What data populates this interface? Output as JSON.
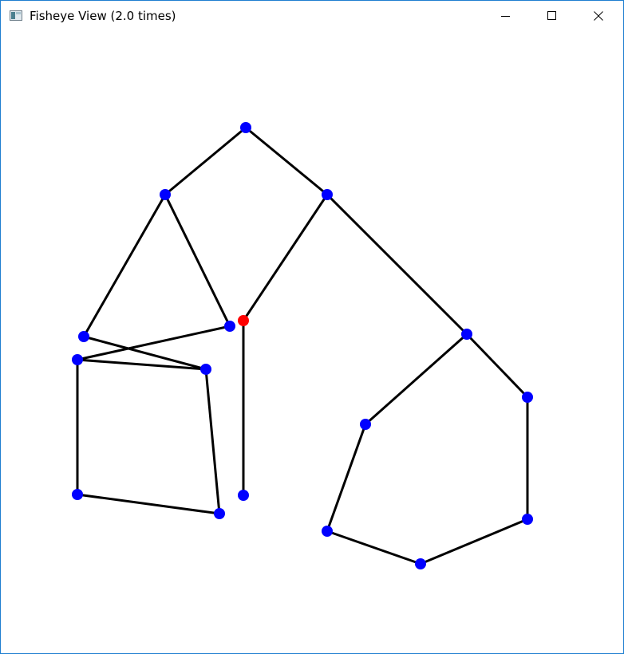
{
  "window": {
    "title": "Fisheye View (2.0 times)",
    "app_icon": "window-icon",
    "controls": [
      {
        "name": "minimize-button",
        "icon": "minimize-icon",
        "glyph": "—"
      },
      {
        "name": "maximize-button",
        "icon": "maximize-icon",
        "glyph": "□"
      },
      {
        "name": "close-button",
        "icon": "close-icon",
        "glyph": "✕"
      }
    ]
  },
  "graph": {
    "colors": {
      "node": "#0000ff",
      "highlight_node": "#ff0000",
      "edge": "#000000",
      "border": "#1f7fd0"
    },
    "nodes": [
      {
        "id": "n-top",
        "highlight": false
      },
      {
        "id": "n-left1",
        "highlight": false
      },
      {
        "id": "n-right1",
        "highlight": false
      },
      {
        "id": "n-leftleaf",
        "highlight": false
      },
      {
        "id": "n-mid",
        "highlight": false
      },
      {
        "id": "n-red",
        "highlight": true
      },
      {
        "id": "n-sq-tl",
        "highlight": false
      },
      {
        "id": "n-sq-tr",
        "highlight": false
      },
      {
        "id": "n-sq-bl",
        "highlight": false
      },
      {
        "id": "n-sq-br",
        "highlight": false
      },
      {
        "id": "n-vert-bottom",
        "highlight": false
      },
      {
        "id": "n-r-hub",
        "highlight": false
      },
      {
        "id": "n-r-left",
        "highlight": false
      },
      {
        "id": "n-r-right",
        "highlight": false
      },
      {
        "id": "n-r-bl",
        "highlight": false
      },
      {
        "id": "n-r-bottom",
        "highlight": false
      },
      {
        "id": "n-r-br",
        "highlight": false
      }
    ],
    "edges": [
      [
        "n-top",
        "n-left1"
      ],
      [
        "n-top",
        "n-right1"
      ],
      [
        "n-left1",
        "n-leftleaf"
      ],
      [
        "n-left1",
        "n-mid"
      ],
      [
        "n-right1",
        "n-red"
      ],
      [
        "n-right1",
        "n-r-hub"
      ],
      [
        "n-red",
        "n-vert-bottom"
      ],
      [
        "n-mid",
        "n-sq-tl"
      ],
      [
        "n-leftleaf",
        "n-sq-tr"
      ],
      [
        "n-sq-tl",
        "n-sq-tr"
      ],
      [
        "n-sq-tl",
        "n-sq-bl"
      ],
      [
        "n-sq-tr",
        "n-sq-br"
      ],
      [
        "n-sq-bl",
        "n-sq-br"
      ],
      [
        "n-r-hub",
        "n-r-left"
      ],
      [
        "n-r-hub",
        "n-r-right"
      ],
      [
        "n-r-left",
        "n-r-bl"
      ],
      [
        "n-r-bl",
        "n-r-bottom"
      ],
      [
        "n-r-bottom",
        "n-r-br"
      ],
      [
        "n-r-br",
        "n-r-right"
      ]
    ]
  }
}
